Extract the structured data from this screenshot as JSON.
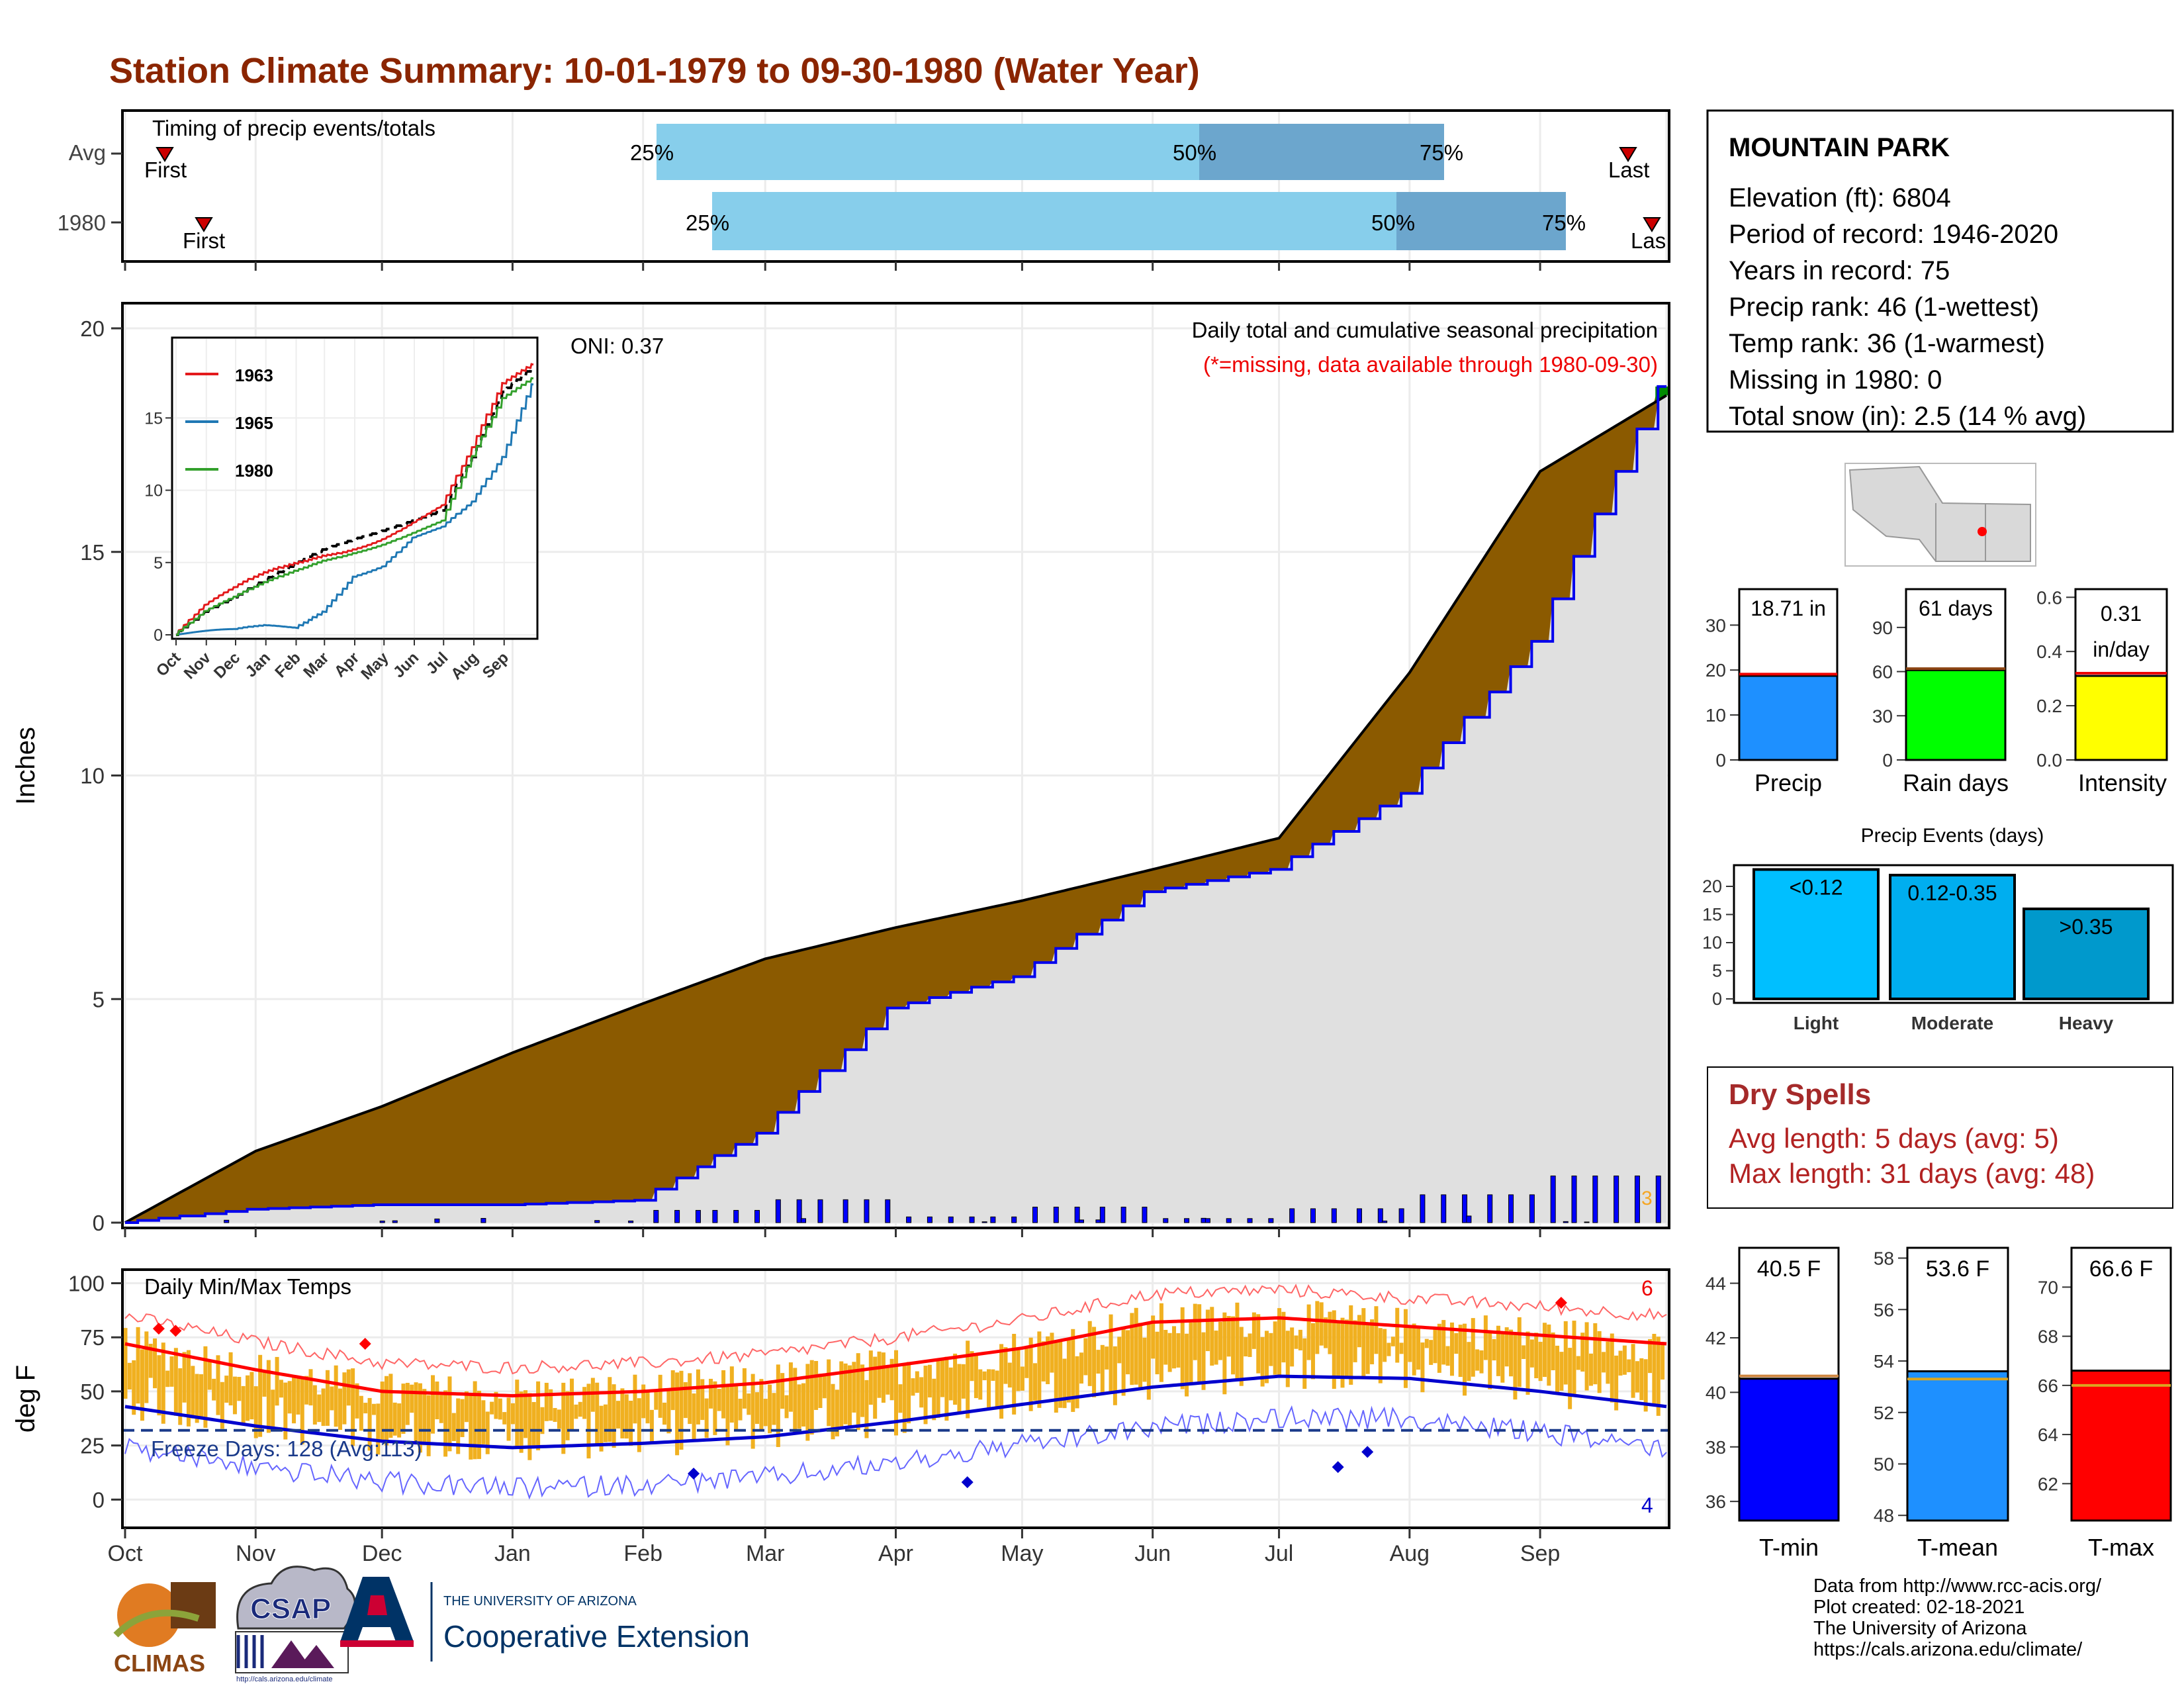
{
  "title": "Station Climate Summary: 10-01-1979 to 09-30-1980 (Water Year)",
  "timing": {
    "title": "Timing of precip events/totals",
    "rows": [
      {
        "label": "Avg",
        "first": "First",
        "last": "Last",
        "p25": "25%",
        "p50": "50%",
        "p75": "75%"
      },
      {
        "label": "1980",
        "first": "First",
        "last": "Las",
        "p25": "25%",
        "p50": "50%",
        "p75": "75%"
      }
    ]
  },
  "station": {
    "name": "MOUNTAIN PARK",
    "lines": [
      "Elevation (ft): 6804",
      "Period of record: 1946-2020",
      "Years in record: 75",
      "Precip rank: 46 (1-wettest)",
      "Temp rank: 36 (1-warmest)",
      "Missing in 1980: 0",
      "Total snow (in): 2.5 (14 % avg)"
    ]
  },
  "precip_panel": {
    "ylabel": "Inches",
    "oni": "ONI: 0.37",
    "title": "Daily total and cumulative seasonal precipitation",
    "note": "(*=missing, data available through 1980-09-30)",
    "corner_label": "3",
    "yticks": [
      "0",
      "5",
      "10",
      "15",
      "20"
    ]
  },
  "inset": {
    "yticks": [
      "0",
      "5",
      "10",
      "15"
    ],
    "xticks": [
      "Oct",
      "Nov",
      "Dec",
      "Jan",
      "Feb",
      "Mar",
      "Apr",
      "May",
      "Jun",
      "Jul",
      "Aug",
      "Sep"
    ],
    "legend": [
      "1963",
      "1965",
      "1980"
    ]
  },
  "temp_panel": {
    "ylabel": "deg F",
    "title": "Daily Min/Max Temps",
    "freeze": "Freeze Days: 128 (Avg:113)",
    "high_count": "6",
    "low_count": "4",
    "yticks": [
      "0",
      "25",
      "50",
      "75",
      "100"
    ]
  },
  "months": [
    "Oct",
    "Nov",
    "Dec",
    "Jan",
    "Feb",
    "Mar",
    "Apr",
    "May",
    "Jun",
    "Jul",
    "Aug",
    "Sep"
  ],
  "mini_bars": {
    "precip": {
      "value_label": "18.71 in",
      "label": "Precip",
      "yticks": [
        "0",
        "10",
        "20",
        "30"
      ]
    },
    "rain_days": {
      "value_label": "61 days",
      "label": "Rain days",
      "yticks": [
        "0",
        "30",
        "60",
        "90"
      ]
    },
    "intensity": {
      "value_label": "0.31",
      "value_label2": "in/day",
      "label": "Intensity",
      "yticks": [
        "0.0",
        "0.2",
        "0.4",
        "0.6"
      ]
    }
  },
  "precip_events": {
    "title": "Precip Events (days)",
    "yticks": [
      "0",
      "5",
      "10",
      "15",
      "20"
    ],
    "bars": [
      {
        "category": "Light",
        "label": "<0.12"
      },
      {
        "category": "Moderate",
        "label": "0.12-0.35"
      },
      {
        "category": "Heavy",
        "label": ">0.35"
      }
    ]
  },
  "dry_spells": {
    "title": "Dry Spells",
    "avg": "Avg length: 5 days (avg: 5)",
    "max": "Max length: 31 days (avg: 48)"
  },
  "temp_bars": {
    "tmin": {
      "label": "T-min",
      "value_label": "40.5 F",
      "yticks": [
        "36",
        "38",
        "40",
        "42",
        "44"
      ]
    },
    "tmean": {
      "label": "T-mean",
      "value_label": "53.6 F",
      "yticks": [
        "48",
        "50",
        "52",
        "54",
        "56",
        "58"
      ]
    },
    "tmax": {
      "label": "T-max",
      "value_label": "66.6 F",
      "yticks": [
        "62",
        "64",
        "66",
        "68",
        "70"
      ]
    }
  },
  "footer": {
    "lines": [
      "Data from http://www.rcc-acis.org/",
      "Plot created: 02-18-2021",
      "The University of Arizona",
      "https://cals.arizona.edu/climate/"
    ],
    "logo_climas": "CLIMAS",
    "logo_csap": "CSAP",
    "logo_csap_url": "http://cals.arizona.edu/climate",
    "ua_line1": "THE UNIVERSITY OF ARIZONA",
    "ua_line2": "Cooperative Extension"
  },
  "colors": {
    "title": "#8B2500",
    "avg_band": "#87CEEB",
    "avg_band_dark": "#6CA6CD",
    "deficit": "#8B5A00",
    "surplus": "#008B00",
    "cumulative_avg_fill": "#E0E0E0",
    "daily_bars": "#0000FF",
    "tmax": "#FF0000",
    "tmin": "#0000CD",
    "range": "#F0B020",
    "dry_spells": "#A52A2A"
  },
  "chart_data": [
    {
      "type": "area",
      "name": "cumulative seasonal precipitation",
      "x_months": [
        "Oct",
        "Nov",
        "Dec",
        "Jan",
        "Feb",
        "Mar",
        "Apr",
        "May",
        "Jun",
        "Jul",
        "Aug",
        "Sep"
      ],
      "ylim": [
        0,
        20
      ],
      "avg_cumulative": [
        0,
        1.6,
        2.6,
        3.8,
        4.9,
        5.9,
        6.6,
        7.2,
        7.9,
        8.6,
        12.3,
        16.8,
        18.5
      ],
      "year_cumulative": [
        0,
        0.3,
        0.4,
        0.4,
        0.5,
        2.0,
        4.8,
        5.5,
        7.4,
        7.9,
        9.6,
        13.0,
        18.7
      ],
      "precip_events_days": {
        "Light": 23,
        "Moderate": 22,
        "Heavy": 16
      },
      "totals": {
        "precip_in": 18.71,
        "rain_days": 61,
        "intensity_in_per_day": 0.31
      }
    },
    {
      "type": "line",
      "name": "daily min/max temps",
      "x_months": [
        "Oct",
        "Nov",
        "Dec",
        "Jan",
        "Feb",
        "Mar",
        "Apr",
        "May",
        "Jun",
        "Jul",
        "Aug",
        "Sep"
      ],
      "ylim": [
        -10,
        102
      ],
      "avg_max_monthly": [
        72,
        60,
        50,
        48,
        50,
        54,
        62,
        70,
        82,
        84,
        80,
        76
      ],
      "avg_min_monthly": [
        43,
        34,
        27,
        24,
        26,
        29,
        36,
        44,
        52,
        57,
        56,
        50
      ],
      "freeze_days": 128,
      "freeze_days_avg": 113,
      "tmin_mean": 40.5,
      "tmean_mean": 53.6,
      "tmax_mean": 66.6
    }
  ]
}
